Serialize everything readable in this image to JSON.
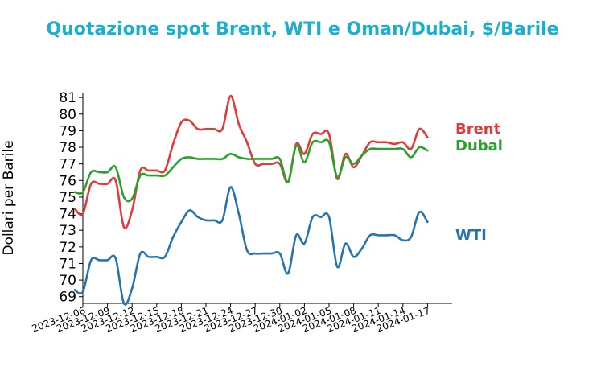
{
  "chart_data": {
    "type": "line",
    "title": "Quotazione spot Brent, WTI e Oman/Dubai, $/Barile",
    "ylabel": "Dollari per Barile",
    "xlabel": "",
    "ylim": [
      68.6,
      81.2
    ],
    "yticks": [
      69,
      70,
      71,
      72,
      73,
      74,
      75,
      76,
      77,
      78,
      79,
      80,
      81
    ],
    "xlim": [
      "2023-12-06",
      "2024-01-20"
    ],
    "xticks": [
      "2023-12-06",
      "2023-12-09",
      "2023-12-12",
      "2023-12-15",
      "2023-12-18",
      "2023-12-21",
      "2023-12-24",
      "2023-12-27",
      "2023-12-30",
      "2024-01-02",
      "2024-01-05",
      "2024-01-08",
      "2024-01-11",
      "2024-01-14",
      "2024-01-17"
    ],
    "legend": "labels at right end of lines",
    "series": [
      {
        "name": "Brent",
        "color": "#e03a3a",
        "points": [
          [
            "2023-12-05",
            74.3
          ],
          [
            "2023-12-06",
            74.0
          ],
          [
            "2023-12-07",
            75.8
          ],
          [
            "2023-12-08",
            75.8
          ],
          [
            "2023-12-09",
            75.8
          ],
          [
            "2023-12-10",
            76.0
          ],
          [
            "2023-12-11",
            73.2
          ],
          [
            "2023-12-12",
            74.2
          ],
          [
            "2023-12-13",
            76.6
          ],
          [
            "2023-12-14",
            76.6
          ],
          [
            "2023-12-15",
            76.6
          ],
          [
            "2023-12-16",
            76.6
          ],
          [
            "2023-12-17",
            78.2
          ],
          [
            "2023-12-18",
            79.5
          ],
          [
            "2023-12-19",
            79.6
          ],
          [
            "2023-12-20",
            79.1
          ],
          [
            "2023-12-21",
            79.1
          ],
          [
            "2023-12-22",
            79.1
          ],
          [
            "2023-12-23",
            79.1
          ],
          [
            "2023-12-24",
            81.1
          ],
          [
            "2023-12-25",
            79.4
          ],
          [
            "2023-12-26",
            78.3
          ],
          [
            "2023-12-27",
            77.0
          ],
          [
            "2023-12-28",
            77.0
          ],
          [
            "2023-12-29",
            77.0
          ],
          [
            "2023-12-30",
            77.0
          ],
          [
            "2023-12-31",
            75.9
          ],
          [
            "2024-01-01",
            78.2
          ],
          [
            "2024-01-02",
            77.6
          ],
          [
            "2024-01-03",
            78.8
          ],
          [
            "2024-01-04",
            78.8
          ],
          [
            "2024-01-05",
            78.8
          ],
          [
            "2024-01-06",
            76.1
          ],
          [
            "2024-01-07",
            77.6
          ],
          [
            "2024-01-08",
            76.8
          ],
          [
            "2024-01-09",
            77.5
          ],
          [
            "2024-01-10",
            78.3
          ],
          [
            "2024-01-11",
            78.3
          ],
          [
            "2024-01-12",
            78.3
          ],
          [
            "2024-01-13",
            78.2
          ],
          [
            "2024-01-14",
            78.3
          ],
          [
            "2024-01-15",
            77.9
          ],
          [
            "2024-01-16",
            79.1
          ],
          [
            "2024-01-17",
            78.6
          ]
        ]
      },
      {
        "name": "Dubai",
        "color": "#2ca02c",
        "points": [
          [
            "2023-12-05",
            75.3
          ],
          [
            "2023-12-06",
            75.3
          ],
          [
            "2023-12-07",
            76.5
          ],
          [
            "2023-12-08",
            76.5
          ],
          [
            "2023-12-09",
            76.5
          ],
          [
            "2023-12-10",
            76.8
          ],
          [
            "2023-12-11",
            75.0
          ],
          [
            "2023-12-12",
            74.9
          ],
          [
            "2023-12-13",
            76.3
          ],
          [
            "2023-12-14",
            76.3
          ],
          [
            "2023-12-15",
            76.3
          ],
          [
            "2023-12-16",
            76.3
          ],
          [
            "2023-12-17",
            76.8
          ],
          [
            "2023-12-18",
            77.3
          ],
          [
            "2023-12-19",
            77.4
          ],
          [
            "2023-12-20",
            77.3
          ],
          [
            "2023-12-21",
            77.3
          ],
          [
            "2023-12-22",
            77.3
          ],
          [
            "2023-12-23",
            77.3
          ],
          [
            "2023-12-24",
            77.6
          ],
          [
            "2023-12-25",
            77.4
          ],
          [
            "2023-12-26",
            77.3
          ],
          [
            "2023-12-27",
            77.3
          ],
          [
            "2023-12-28",
            77.3
          ],
          [
            "2023-12-29",
            77.3
          ],
          [
            "2023-12-30",
            77.3
          ],
          [
            "2023-12-31",
            75.9
          ],
          [
            "2024-01-01",
            78.1
          ],
          [
            "2024-01-02",
            77.1
          ],
          [
            "2024-01-03",
            78.3
          ],
          [
            "2024-01-04",
            78.3
          ],
          [
            "2024-01-05",
            78.3
          ],
          [
            "2024-01-06",
            76.2
          ],
          [
            "2024-01-07",
            77.4
          ],
          [
            "2024-01-08",
            77.0
          ],
          [
            "2024-01-09",
            77.5
          ],
          [
            "2024-01-10",
            77.9
          ],
          [
            "2024-01-11",
            77.9
          ],
          [
            "2024-01-12",
            77.9
          ],
          [
            "2024-01-13",
            77.9
          ],
          [
            "2024-01-14",
            77.9
          ],
          [
            "2024-01-15",
            77.4
          ],
          [
            "2024-01-16",
            78.0
          ],
          [
            "2024-01-17",
            77.8
          ]
        ]
      },
      {
        "name": "WTI",
        "color": "#2574b0",
        "points": [
          [
            "2023-12-05",
            69.4
          ],
          [
            "2023-12-06",
            69.3
          ],
          [
            "2023-12-07",
            71.2
          ],
          [
            "2023-12-08",
            71.2
          ],
          [
            "2023-12-09",
            71.2
          ],
          [
            "2023-12-10",
            71.3
          ],
          [
            "2023-12-11",
            68.6
          ],
          [
            "2023-12-12",
            69.5
          ],
          [
            "2023-12-13",
            71.6
          ],
          [
            "2023-12-14",
            71.4
          ],
          [
            "2023-12-15",
            71.4
          ],
          [
            "2023-12-16",
            71.4
          ],
          [
            "2023-12-17",
            72.6
          ],
          [
            "2023-12-18",
            73.5
          ],
          [
            "2023-12-19",
            74.2
          ],
          [
            "2023-12-20",
            73.8
          ],
          [
            "2023-12-21",
            73.6
          ],
          [
            "2023-12-22",
            73.6
          ],
          [
            "2023-12-23",
            73.6
          ],
          [
            "2023-12-24",
            75.6
          ],
          [
            "2023-12-25",
            74.0
          ],
          [
            "2023-12-26",
            71.8
          ],
          [
            "2023-12-27",
            71.6
          ],
          [
            "2023-12-28",
            71.6
          ],
          [
            "2023-12-29",
            71.6
          ],
          [
            "2023-12-30",
            71.6
          ],
          [
            "2023-12-31",
            70.4
          ],
          [
            "2024-01-01",
            72.7
          ],
          [
            "2024-01-02",
            72.2
          ],
          [
            "2024-01-03",
            73.8
          ],
          [
            "2024-01-04",
            73.8
          ],
          [
            "2024-01-05",
            73.8
          ],
          [
            "2024-01-06",
            70.8
          ],
          [
            "2024-01-07",
            72.2
          ],
          [
            "2024-01-08",
            71.4
          ],
          [
            "2024-01-09",
            71.9
          ],
          [
            "2024-01-10",
            72.7
          ],
          [
            "2024-01-11",
            72.7
          ],
          [
            "2024-01-12",
            72.7
          ],
          [
            "2024-01-13",
            72.7
          ],
          [
            "2024-01-14",
            72.4
          ],
          [
            "2024-01-15",
            72.6
          ],
          [
            "2024-01-16",
            74.1
          ],
          [
            "2024-01-17",
            73.5
          ]
        ]
      }
    ]
  }
}
